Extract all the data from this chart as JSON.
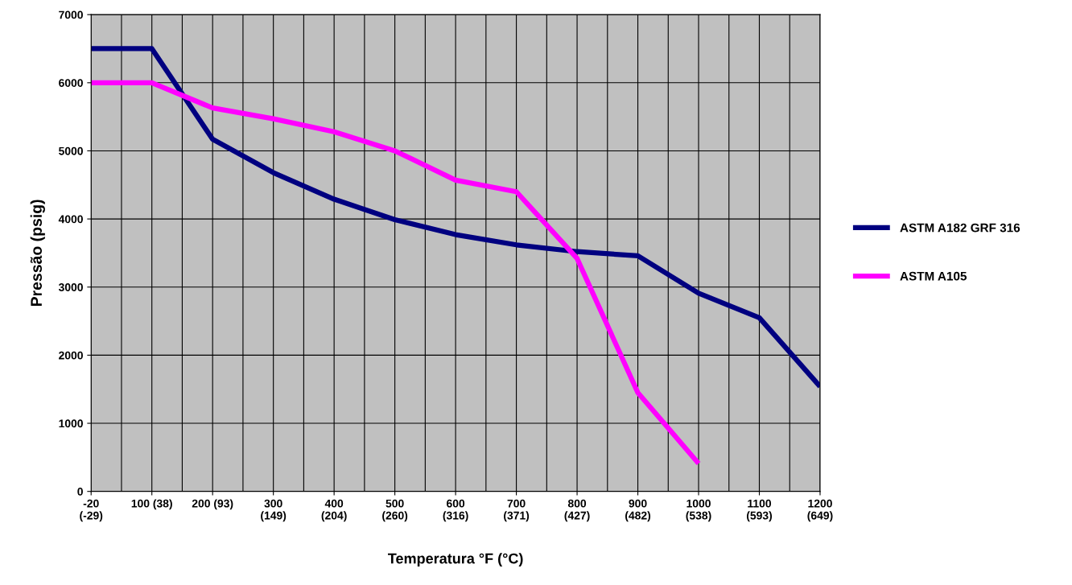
{
  "chart_data": {
    "type": "line",
    "xlabel": "Temperatura °F (°C)",
    "ylabel": "Pressão (psig)",
    "categories": [
      "-20\n(-29)",
      "100 (38)",
      "200 (93)",
      "300\n(149)",
      "400\n(204)",
      "500\n(260)",
      "600\n(316)",
      "700\n(371)",
      "800\n(427)",
      "900\n(482)",
      "1000\n(538)",
      "1100\n(593)",
      "1200\n(649)"
    ],
    "series": [
      {
        "name": "ASTM A182 GRF 316",
        "color": "#000080",
        "values": [
          6500,
          6500,
          5170,
          4680,
          4290,
          3990,
          3770,
          3620,
          3520,
          3460,
          2910,
          2550,
          1540
        ]
      },
      {
        "name": "ASTM A105",
        "color": "#ff00ff",
        "values": [
          6000,
          6000,
          5630,
          5470,
          5280,
          5000,
          4570,
          4400,
          3420,
          1450,
          410,
          null,
          null
        ]
      }
    ],
    "ylim": [
      0,
      7000
    ],
    "yticks": [
      0,
      1000,
      2000,
      3000,
      4000,
      5000,
      6000,
      7000
    ],
    "grid": true,
    "legend": "right",
    "marker": "none",
    "line_style": "solid"
  }
}
